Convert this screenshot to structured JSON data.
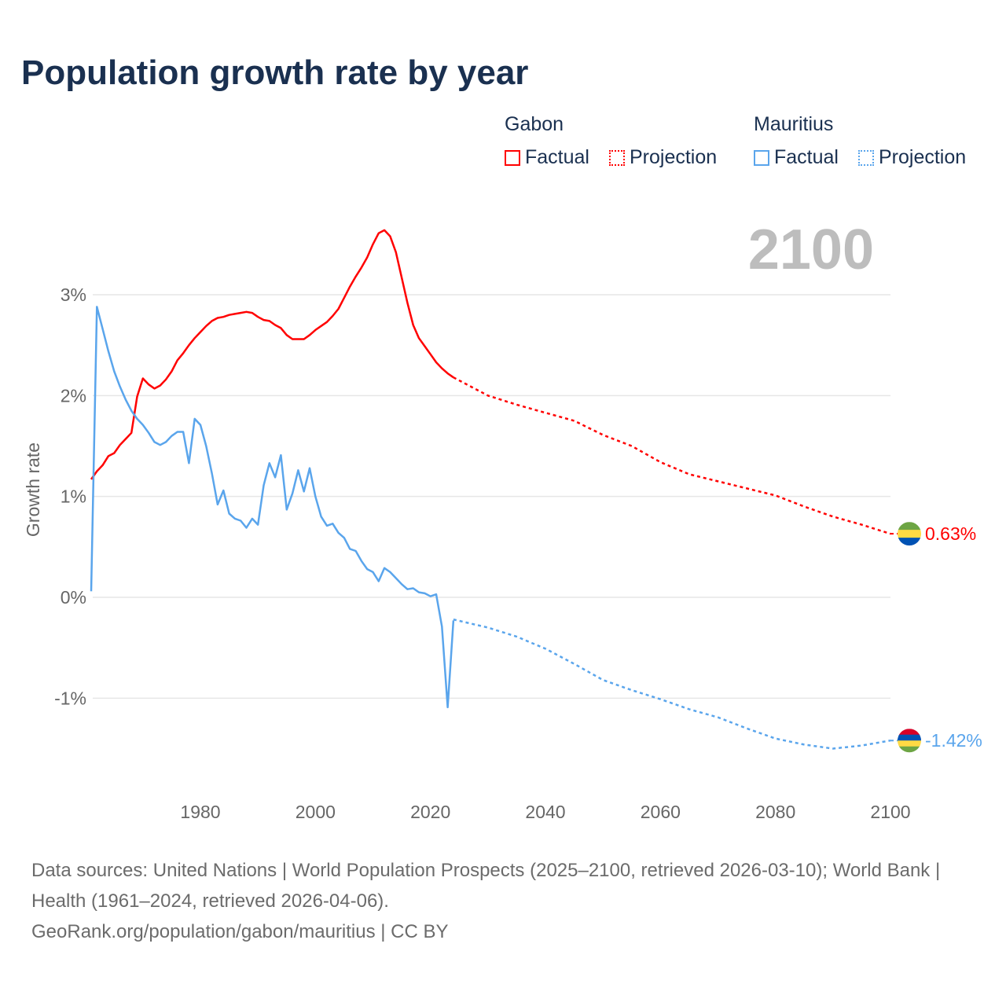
{
  "title": "Population growth rate by year",
  "legend": {
    "groups": [
      {
        "name": "Gabon",
        "factual": "Factual",
        "projection": "Projection",
        "color": "#ff0000"
      },
      {
        "name": "Mauritius",
        "factual": "Factual",
        "projection": "Projection",
        "color": "#5aa5ec"
      }
    ]
  },
  "footer": {
    "line1": "Data sources: United Nations | World Population Prospects (2025–2100, retrieved 2026-03-10); World Bank | Health (1961–2024, retrieved 2026-04-06).",
    "line2": "GeoRank.org/population/gabon/mauritius | CC BY"
  },
  "chart_data": {
    "type": "line",
    "title": "Population growth rate by year",
    "ylabel": "Growth rate",
    "xlabel": "",
    "current_year_label": "2100",
    "xlim": [
      1961,
      2100
    ],
    "ylim": [
      -1.9,
      3.7
    ],
    "x_ticks": [
      1980,
      2000,
      2020,
      2040,
      2060,
      2080,
      2100
    ],
    "x_tick_labels": [
      "1980",
      "2000",
      "2020",
      "2040",
      "2060",
      "2080",
      "2100"
    ],
    "y_ticks": [
      -1,
      0,
      1,
      2,
      3
    ],
    "y_tick_labels": [
      "-1%",
      "0%",
      "1%",
      "2%",
      "3%"
    ],
    "grid": true,
    "legend_position": "top-right",
    "series": [
      {
        "name": "Gabon",
        "color": "#ff0000",
        "end_label": "0.63%",
        "factual": {
          "start_year": 1961,
          "values": [
            1.17,
            1.25,
            1.31,
            1.4,
            1.43,
            1.51,
            1.57,
            1.63,
            1.99,
            2.17,
            2.11,
            2.07,
            2.1,
            2.16,
            2.24,
            2.35,
            2.42,
            2.5,
            2.57,
            2.63,
            2.69,
            2.74,
            2.77,
            2.78,
            2.8,
            2.81,
            2.82,
            2.83,
            2.82,
            2.78,
            2.75,
            2.74,
            2.7,
            2.67,
            2.6,
            2.56,
            2.56,
            2.56,
            2.6,
            2.65,
            2.69,
            2.73,
            2.79,
            2.86,
            2.97,
            3.08,
            3.18,
            3.27,
            3.37,
            3.5,
            3.61,
            3.64,
            3.58,
            3.42,
            3.17,
            2.92,
            2.7,
            2.57,
            2.49,
            2.41,
            2.33,
            2.27,
            2.22,
            2.18
          ]
        },
        "projection": {
          "years": [
            2024,
            2030,
            2035,
            2040,
            2045,
            2050,
            2055,
            2060,
            2065,
            2070,
            2075,
            2080,
            2085,
            2090,
            2095,
            2100
          ],
          "values": [
            2.18,
            2.0,
            1.91,
            1.83,
            1.75,
            1.61,
            1.5,
            1.34,
            1.22,
            1.15,
            1.08,
            1.01,
            0.9,
            0.8,
            0.72,
            0.63
          ]
        }
      },
      {
        "name": "Mauritius",
        "color": "#5aa5ec",
        "end_label": "-1.42%",
        "factual": {
          "start_year": 1961,
          "values": [
            0.06,
            2.88,
            2.66,
            2.44,
            2.24,
            2.09,
            1.96,
            1.85,
            1.77,
            1.71,
            1.63,
            1.54,
            1.51,
            1.54,
            1.6,
            1.64,
            1.64,
            1.33,
            1.77,
            1.71,
            1.5,
            1.23,
            0.92,
            1.06,
            0.83,
            0.78,
            0.76,
            0.69,
            0.78,
            0.72,
            1.11,
            1.33,
            1.19,
            1.41,
            0.87,
            1.03,
            1.26,
            1.05,
            1.28,
            1.0,
            0.8,
            0.71,
            0.73,
            0.64,
            0.59,
            0.48,
            0.46,
            0.36,
            0.28,
            0.25,
            0.16,
            0.29,
            0.25,
            0.19,
            0.13,
            0.08,
            0.09,
            0.05,
            0.04,
            0.01,
            0.03,
            -0.29,
            -1.09,
            -0.23
          ]
        },
        "projection": {
          "years": [
            2024,
            2030,
            2035,
            2040,
            2045,
            2050,
            2055,
            2060,
            2065,
            2070,
            2075,
            2080,
            2085,
            2090,
            2095,
            2100
          ],
          "values": [
            -0.22,
            -0.3,
            -0.39,
            -0.51,
            -0.66,
            -0.82,
            -0.92,
            -1.01,
            -1.11,
            -1.19,
            -1.3,
            -1.4,
            -1.46,
            -1.5,
            -1.47,
            -1.42
          ]
        }
      }
    ]
  }
}
